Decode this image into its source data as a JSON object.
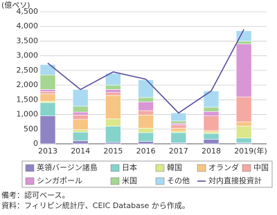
{
  "chart_data": {
    "type": "stacked_bar_line",
    "y_label": "(億ペソ)",
    "x_unit": "(年)",
    "categories": [
      "2013",
      "2014",
      "2015",
      "2016",
      "2017",
      "2018",
      "2019"
    ],
    "series": [
      {
        "name": "英領バージン諸島",
        "color": "#8e84c4",
        "values": [
          950,
          100,
          50,
          80,
          30,
          150,
          30
        ]
      },
      {
        "name": "日本",
        "color": "#86d3cb",
        "values": [
          450,
          300,
          550,
          300,
          350,
          200,
          170
        ]
      },
      {
        "name": "韓国",
        "color": "#dbe78a",
        "values": [
          50,
          80,
          250,
          150,
          50,
          50,
          400
        ]
      },
      {
        "name": "オランダ",
        "color": "#f7c583",
        "values": [
          250,
          350,
          800,
          450,
          100,
          50,
          150
        ]
      },
      {
        "name": "中国",
        "color": "#f4a9a3",
        "values": [
          80,
          150,
          100,
          150,
          120,
          500,
          850
        ]
      },
      {
        "name": "シンガポール",
        "color": "#d996d6",
        "values": [
          70,
          100,
          100,
          300,
          50,
          150,
          1800
        ]
      },
      {
        "name": "米国",
        "color": "#a5d692",
        "values": [
          500,
          200,
          150,
          150,
          80,
          150,
          100
        ]
      },
      {
        "name": "その他",
        "color": "#a9daf2",
        "values": [
          350,
          570,
          400,
          600,
          270,
          550,
          350
        ]
      }
    ],
    "line": {
      "name": "対内直接投資計",
      "color": "#5b4c9c",
      "values": [
        2750,
        1850,
        2450,
        2200,
        1050,
        1800,
        3900
      ]
    },
    "ylim": [
      0,
      4500
    ],
    "yticks": [
      0,
      500,
      {
        "value": 1000,
        "label": "1,000"
      },
      {
        "value": 1500,
        "label": "1,500"
      },
      {
        "value": 2000,
        "label": "2,000"
      },
      {
        "value": 2500,
        "label": "2,500"
      },
      {
        "value": 3000,
        "label": "3,000"
      },
      {
        "value": 3500,
        "label": "3,500"
      },
      {
        "value": 4000,
        "label": "4,000"
      },
      {
        "value": 4500,
        "label": "4,500"
      }
    ],
    "grid": true,
    "notes": [
      "備考：認可ベース。",
      "資料：フィリピン統計庁、CEIC Database から作成。"
    ]
  }
}
